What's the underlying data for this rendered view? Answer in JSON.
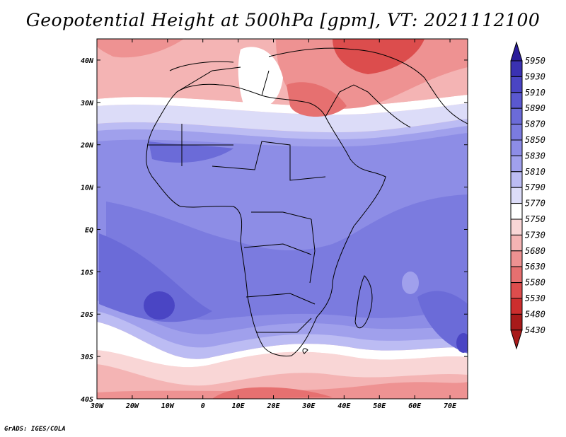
{
  "title": "Geopotential Height at 500hPa [gpm], VT: 2021112100",
  "credit": "GrADS: IGES/COLA",
  "map": {
    "lon_labels": [
      "30W",
      "20W",
      "10W",
      "0",
      "10E",
      "20E",
      "30E",
      "40E",
      "50E",
      "60E",
      "70E"
    ],
    "lat_labels": [
      "40N",
      "30N",
      "20N",
      "10N",
      "EQ",
      "10S",
      "20S",
      "30S",
      "40S"
    ],
    "lon_range": [
      -30,
      75
    ],
    "lat_range": [
      -40,
      45
    ]
  },
  "colorbar": {
    "levels": [
      "5950",
      "5930",
      "5910",
      "5890",
      "5870",
      "5850",
      "5830",
      "5810",
      "5790",
      "5770",
      "5750",
      "5730",
      "5680",
      "5630",
      "5580",
      "5530",
      "5480",
      "5430"
    ],
    "colors": [
      "#2a1c9a",
      "#3a31b2",
      "#4a45c4",
      "#5a58d0",
      "#6b6bd8",
      "#7b7bdf",
      "#8d8de6",
      "#a0a0ec",
      "#bcbcf3",
      "#dcdcf8",
      "#ffffff",
      "#f9d6d6",
      "#f4b4b4",
      "#ee9292",
      "#e67070",
      "#dc4d4d",
      "#cc2e2e",
      "#a81a1a"
    ]
  }
}
